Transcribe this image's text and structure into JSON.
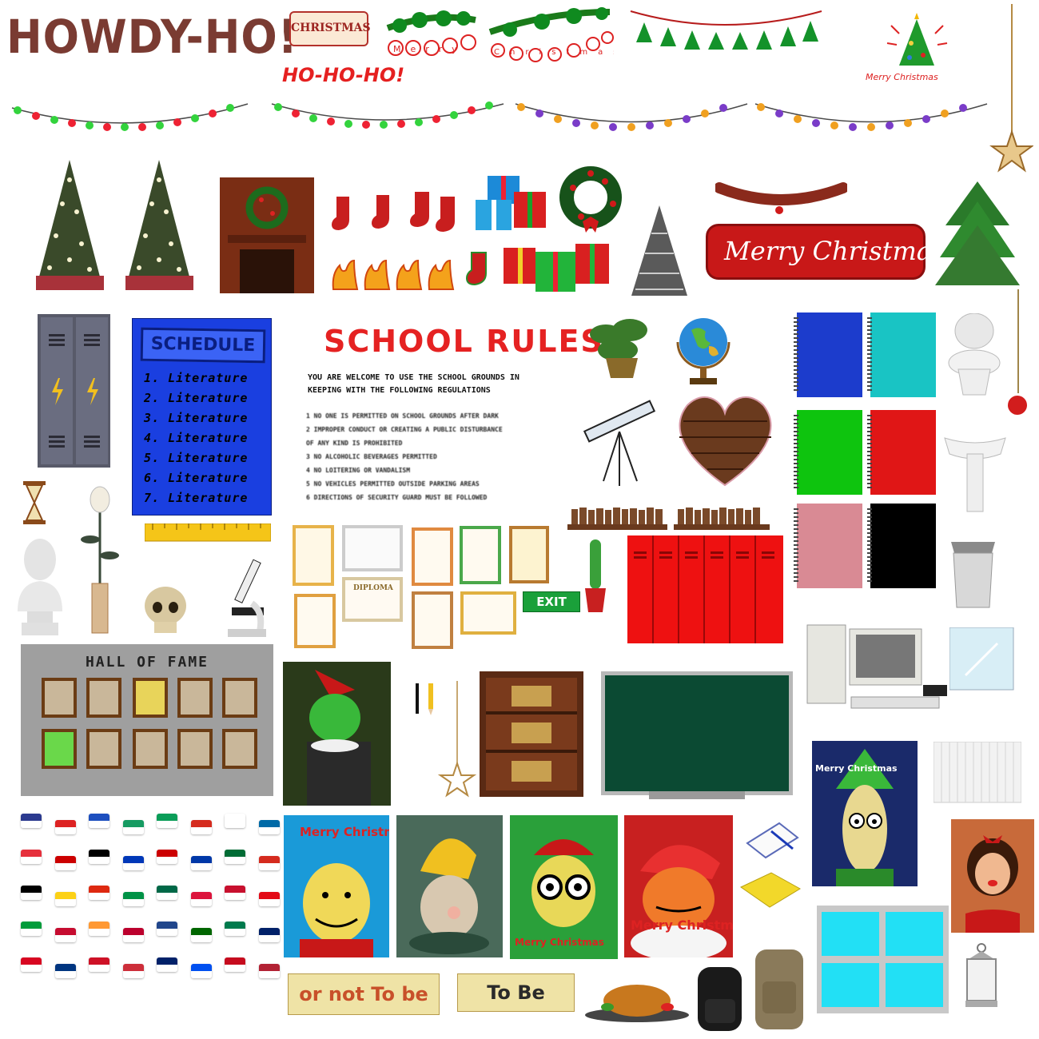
{
  "texts": {
    "howdy": "HOWDY-HO!",
    "hohoho": "HO-HO-HO!",
    "christmas_sign": "CHRISTMAS",
    "merry_garland_1": "Merry",
    "merry_garland_2": "Christmas!",
    "tree_caption": "Merry Christmas",
    "banner": "Merry Christmas",
    "exit": "EXIT",
    "hall_of_fame": "HALL OF FAME",
    "note_1": "or not To be",
    "note_2": "To Be",
    "diploma": "DIPLOMA"
  },
  "schedule": {
    "title": "SCHEDULE",
    "items": [
      "1. Literature",
      "2. Literature",
      "3. Literature",
      "4. Literature",
      "5. Literature",
      "6. Literature",
      "7. Literature"
    ]
  },
  "rules": {
    "title": "SCHOOL RULES",
    "intro": "YOU ARE WELCOME TO USE THE SCHOOL GROUNDS IN KEEPING WITH THE FOLLOWING REGULATIONS",
    "items": [
      "1 NO ONE IS PERMITTED ON SCHOOL GROUNDS AFTER DARK",
      "2 IMPROPER CONDUCT OR CREATING A PUBLIC DISTURBANCE",
      "  OF ANY KIND IS PROHIBITED",
      "3 NO ALCOHOLIC BEVERAGES PERMITTED",
      "4 NO LOITERING OR VANDALISM",
      "5 NO VEHICLES PERMITTED OUTSIDE PARKING AREAS",
      "6 DIRECTIONS OF SECURITY GUARD MUST BE FOLLOWED"
    ]
  },
  "posters": {
    "p1": "Merry Christmas",
    "p3": "Merry Christmas",
    "p4": "Merry Christmas",
    "p5": "Merry Christmas"
  },
  "colors": {
    "notebook_blue": "#1c3ccc",
    "notebook_teal": "#19c4c4",
    "notebook_green": "#0ec40e",
    "notebook_red": "#e01616",
    "notebook_pink": "#d98a94",
    "notebook_black": "#000000",
    "locker_red": "#ee1111",
    "schedule_blue": "#1a3fe0",
    "window_cyan": "#22e0f5",
    "chalkboard": "#0b4a33"
  },
  "icons": [
    "star-ornament-icon",
    "red-bauble-icon",
    "pencil-icon",
    "exit-sign-icon",
    "skull-icon",
    "globe-icon",
    "telescope-icon",
    "microscope-icon",
    "toilet-icon",
    "sink-icon",
    "trash-can-icon",
    "computer-icon",
    "backpack-icon",
    "lantern-icon",
    "turkey-icon",
    "fire-icon",
    "gift-icon",
    "stocking-icon",
    "wreath-icon",
    "christmas-tree-icon",
    "fireplace-icon",
    "cactus-icon",
    "bookshelf-icon",
    "heart-bookshelf-icon",
    "trophy-cabinet-icon",
    "hourglass-icon",
    "rose-icon",
    "bust-icon",
    "ruler-icon",
    "radiator-icon",
    "mirror-icon",
    "notepad-icon",
    "sticky-notes-icon"
  ],
  "flags": [
    [
      "#2b3a8f",
      "#d22",
      "#1d4fbf",
      "#169b62",
      "#0a9d58",
      "#d52b1e",
      "#fff",
      "#006aa7"
    ],
    [
      "#e6303c",
      "#c00",
      "#000",
      "#0038b8",
      "#cc0001",
      "#0038a8",
      "#006c35",
      "#d52b1e"
    ],
    [
      "#000",
      "#fcd116",
      "#de2910",
      "#009246",
      "#006847",
      "#dc143c",
      "#c8102e",
      "#e30a17"
    ],
    [
      "#009c3b",
      "#c60c30",
      "#ff9933",
      "#bc002d",
      "#21468b",
      "#006600",
      "#007a4d",
      "#012169"
    ],
    [
      "#d80621",
      "#003580",
      "#ce1126",
      "#cd2e3a",
      "#012169",
      "#0050f0",
      "#c60b1e",
      "#b22234"
    ]
  ]
}
